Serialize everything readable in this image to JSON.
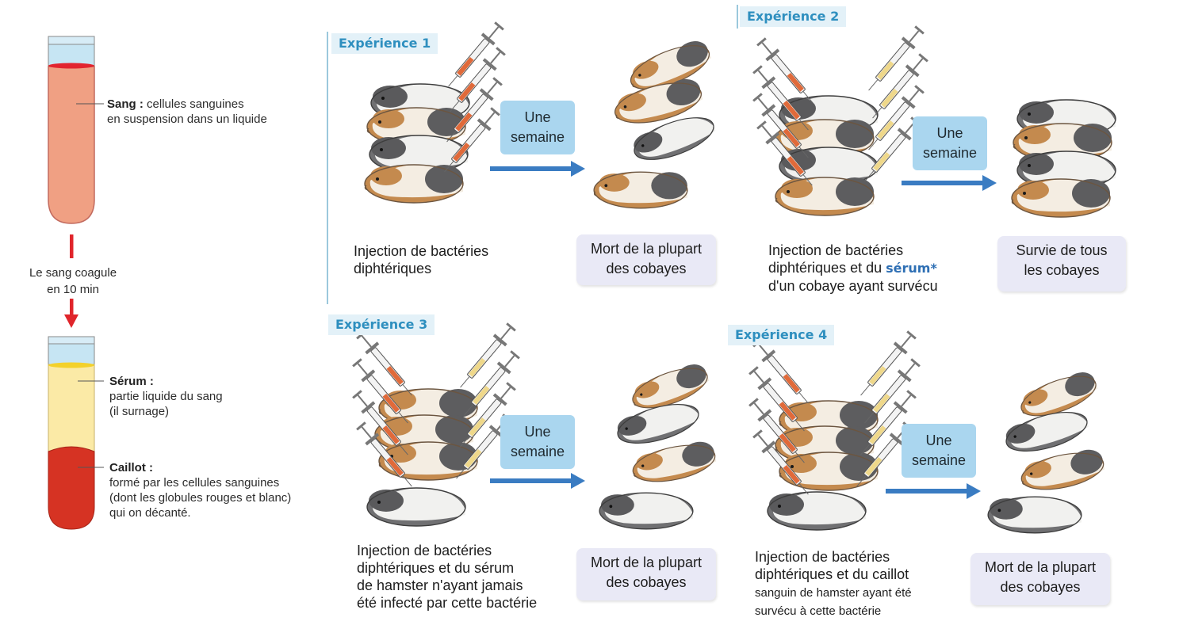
{
  "tube": {
    "sang_title": "Sang :",
    "sang_desc_1": "cellules sanguines",
    "sang_desc_2": "en suspension dans un liquide",
    "coag_line1": "Le sang coagule",
    "coag_line2": "en 10 min",
    "serum_title": "Sérum :",
    "serum_desc_1": "partie liquide du sang",
    "serum_desc_2": "(il surnage)",
    "caillot_title": "Caillot :",
    "caillot_desc_1": "formé par les cellules sanguines",
    "caillot_desc_2": "(dont les globules rouges et blanc)",
    "caillot_desc_3": "qui on décanté."
  },
  "colors": {
    "blood": "#f0a083",
    "blood_surface": "#e2242f",
    "serum": "#fbeaa6",
    "serum_surface": "#f3d12b",
    "clot": "#d63323",
    "arrow_red": "#e0252b",
    "arrow_blue": "#3a7cc2",
    "title": "#2e8fbf"
  },
  "experiments": [
    {
      "title": "Expérience 1",
      "week_1": "Une",
      "week_2": "semaine",
      "caption_1": "Injection de bactéries",
      "caption_2": "diphtériques",
      "result_1": "Mort de la plupart",
      "result_2": "des cobayes"
    },
    {
      "title": "Expérience 2",
      "week_1": "Une",
      "week_2": "semaine",
      "caption_1": "Injection de bactéries",
      "caption_2a": "diphtériques et du",
      "caption_2b": "sérum*",
      "caption_3": "d'un cobaye ayant survécu",
      "result_1": "Survie de tous",
      "result_2": "les cobayes"
    },
    {
      "title": "Expérience 3",
      "week_1": "Une",
      "week_2": "semaine",
      "caption_1": "Injection de bactéries",
      "caption_2": "diphtériques et du sérum",
      "caption_3": "de hamster n'ayant jamais",
      "caption_4": "été infecté par cette bactérie",
      "result_1": "Mort de la plupart",
      "result_2": "des cobayes"
    },
    {
      "title": "Expérience 4",
      "week_1": "Une",
      "week_2": "semaine",
      "caption_1": "Injection de bactéries",
      "caption_2": "diphtériques et du caillot",
      "caption_3": "sanguin de hamster ayant été",
      "caption_4": "survécu à cette bactérie",
      "result_1": "Mort de la plupart",
      "result_2": "des cobayes"
    }
  ]
}
